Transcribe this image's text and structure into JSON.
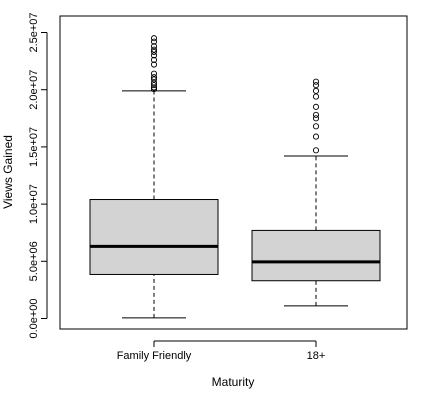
{
  "chart_data": {
    "type": "boxplot",
    "title": "",
    "xlabel": "Maturity",
    "ylabel": "Views Gained",
    "ylim": [
      0,
      25500000
    ],
    "yticks": [
      0,
      5000000,
      10000000,
      15000000,
      20000000,
      25000000
    ],
    "ytick_labels": [
      "0.0e+00",
      "5.0e+06",
      "1.0e+07",
      "1.5e+07",
      "2.0e+07",
      "2.5e+07"
    ],
    "categories": [
      "Family Friendly",
      "18+"
    ],
    "grid": false,
    "legend": "none",
    "box_fill": "#d3d3d3",
    "series": [
      {
        "category": "Family Friendly",
        "whisker_low": 60000,
        "q1": 3850000,
        "median": 6300000,
        "q3": 10400000,
        "whisker_high": 19900000,
        "outliers": [
          20050000,
          20200000,
          20400000,
          20600000,
          20900000,
          21100000,
          21400000,
          22200000,
          22600000,
          23000000,
          23300000,
          23500000,
          23800000,
          24200000,
          24500000
        ]
      },
      {
        "category": "18+",
        "whisker_low": 1100000,
        "q1": 3300000,
        "median": 4950000,
        "q3": 7700000,
        "whisker_high": 14200000,
        "outliers": [
          14700000,
          15900000,
          16800000,
          17500000,
          17800000,
          18500000,
          19400000,
          19900000,
          20400000,
          20700000
        ]
      }
    ]
  }
}
